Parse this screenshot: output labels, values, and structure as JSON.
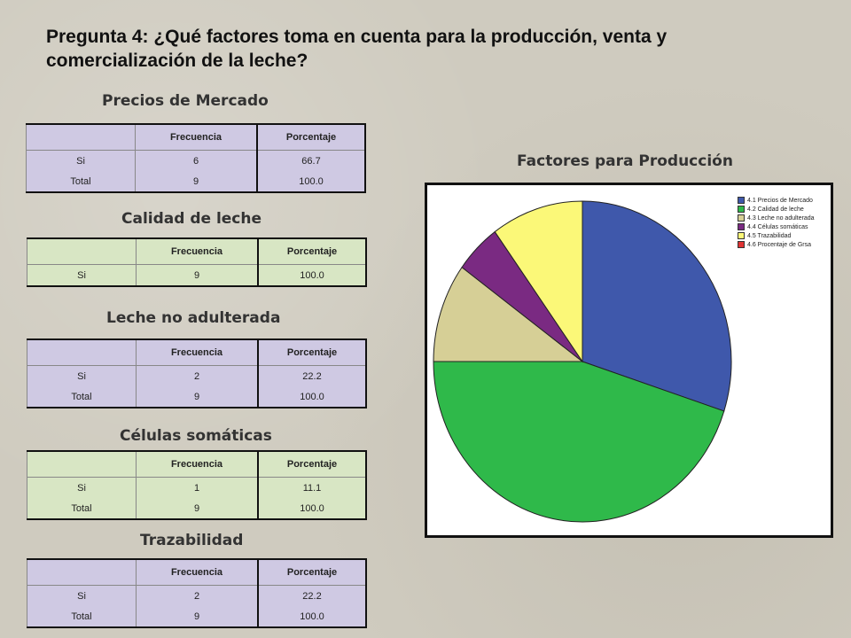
{
  "title": "Pregunta 4: ¿Qué factores toma en cuenta para la producción, venta y comercialización de la leche?",
  "tables": [
    {
      "heading": "Precios de Mercado",
      "col1": "Frecuencia",
      "col2": "Porcentaje",
      "rows": [
        {
          "label": "Si",
          "freq": "6",
          "pct": "66.7"
        },
        {
          "label": "Total",
          "freq": "9",
          "pct": "100.0"
        }
      ]
    },
    {
      "heading": "Calidad de leche",
      "col1": "Frecuencia",
      "col2": "Porcentaje",
      "rows": [
        {
          "label": "Si",
          "freq": "9",
          "pct": "100.0"
        }
      ]
    },
    {
      "heading": "Leche no adulterada",
      "col1": "Frecuencia",
      "col2": "Porcentaje",
      "rows": [
        {
          "label": "Si",
          "freq": "2",
          "pct": "22.2"
        },
        {
          "label": "Total",
          "freq": "9",
          "pct": "100.0"
        }
      ]
    },
    {
      "heading": "Células somáticas",
      "col1": "Frecuencia",
      "col2": "Porcentaje",
      "rows": [
        {
          "label": "Si",
          "freq": "1",
          "pct": "11.1"
        },
        {
          "label": "Total",
          "freq": "9",
          "pct": "100.0"
        }
      ]
    },
    {
      "heading": "Trazabilidad",
      "col1": "Frecuencia",
      "col2": "Porcentaje",
      "rows": [
        {
          "label": "Si",
          "freq": "2",
          "pct": "22.2"
        },
        {
          "label": "Total",
          "freq": "9",
          "pct": "100.0"
        }
      ]
    }
  ],
  "colors": {
    "table_purple": "#cfc9e3",
    "table_green": "#d8e6c4"
  },
  "chart_data": {
    "type": "pie",
    "title": "Factores para Producción",
    "legend_position": "top-right",
    "categories": [
      "4.1 Precios de Mercado",
      "4.2 Calidad de leche",
      "4.3 Leche no adulterada",
      "4.4 Células somáticas",
      "4.5 Trazabilidad",
      "4.6 Procentaje de Grsa"
    ],
    "values": [
      6,
      9,
      2,
      1,
      2,
      0
    ],
    "colors": [
      "#3f58ab",
      "#2fb94a",
      "#d6cf96",
      "#7a2a82",
      "#fbf878",
      "#e03434"
    ]
  }
}
